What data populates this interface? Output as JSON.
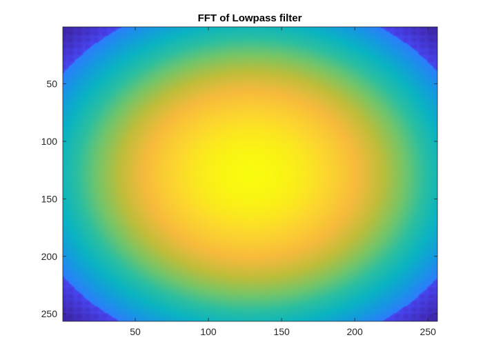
{
  "chart_data": {
    "type": "heatmap",
    "title": "FFT of Lowpass filter",
    "xlabel": "",
    "ylabel": "",
    "xlim": [
      0.5,
      256.5
    ],
    "ylim": [
      0.5,
      256.5
    ],
    "y_direction": "reversed",
    "grid": false,
    "legend": "none",
    "colormap": "parula",
    "peak": {
      "x": 129,
      "y": 129
    },
    "corner_value": "minimum",
    "colors": {
      "low": "#3e26a8",
      "mid": "#20b2aa",
      "high": "#f9fb0e",
      "axis": "#262626"
    },
    "x_ticks": [
      {
        "value": 50,
        "label": "50"
      },
      {
        "value": 100,
        "label": "100"
      },
      {
        "value": 150,
        "label": "150"
      },
      {
        "value": 200,
        "label": "200"
      },
      {
        "value": 250,
        "label": "250"
      }
    ],
    "y_ticks": [
      {
        "value": 50,
        "label": "50"
      },
      {
        "value": 100,
        "label": "100"
      },
      {
        "value": 150,
        "label": "150"
      },
      {
        "value": 200,
        "label": "200"
      },
      {
        "value": 250,
        "label": "250"
      }
    ]
  }
}
